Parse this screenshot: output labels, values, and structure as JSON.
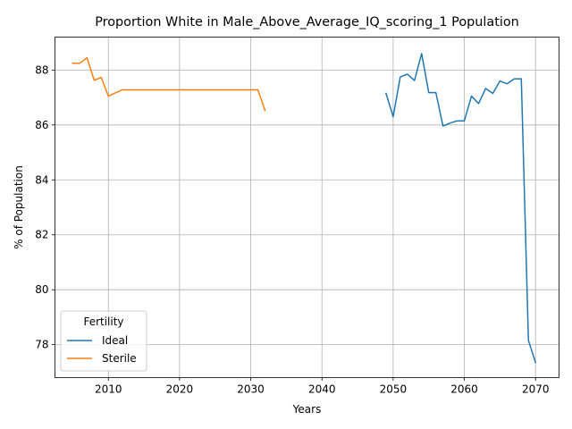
{
  "chart_data": {
    "type": "line",
    "title": "Proportion White in Male_Above_Average_IQ_scoring_1 Population",
    "xlabel": "Years",
    "ylabel": "% of Population",
    "xlim": [
      2002.5,
      2073.3
    ],
    "ylim": [
      76.8,
      89.2
    ],
    "xticks": [
      2010,
      2020,
      2030,
      2040,
      2050,
      2060,
      2070
    ],
    "yticks": [
      78,
      80,
      82,
      84,
      86,
      88
    ],
    "grid": true,
    "legend": {
      "title": "Fertility",
      "placement": "lower-left"
    },
    "series": [
      {
        "name": "Ideal",
        "color": "#1f77b4",
        "x": [
          2049,
          2050,
          2051,
          2052,
          2053,
          2054,
          2055,
          2056,
          2057,
          2058,
          2059,
          2060,
          2061,
          2062,
          2063,
          2064,
          2065,
          2066,
          2067,
          2068,
          2069,
          2070
        ],
        "y": [
          87.15,
          86.3,
          87.75,
          87.85,
          87.62,
          88.6,
          87.18,
          87.18,
          85.96,
          86.07,
          86.15,
          86.15,
          87.05,
          86.78,
          87.33,
          87.15,
          87.6,
          87.5,
          87.68,
          87.68,
          78.15,
          77.35
        ]
      },
      {
        "name": "Sterile",
        "color": "#ff7f0e",
        "x": [
          2005,
          2006,
          2007,
          2008,
          2009,
          2010,
          2011,
          2012,
          2013,
          2014,
          2015,
          2016,
          2017,
          2018,
          2019,
          2020,
          2021,
          2022,
          2023,
          2024,
          2025,
          2026,
          2027,
          2028,
          2029,
          2030,
          2031,
          2032
        ],
        "y": [
          88.25,
          88.25,
          88.45,
          87.63,
          87.73,
          87.05,
          87.17,
          87.28,
          87.28,
          87.28,
          87.28,
          87.28,
          87.28,
          87.28,
          87.28,
          87.28,
          87.28,
          87.28,
          87.28,
          87.28,
          87.28,
          87.28,
          87.28,
          87.28,
          87.28,
          87.28,
          87.28,
          86.53
        ]
      }
    ]
  }
}
